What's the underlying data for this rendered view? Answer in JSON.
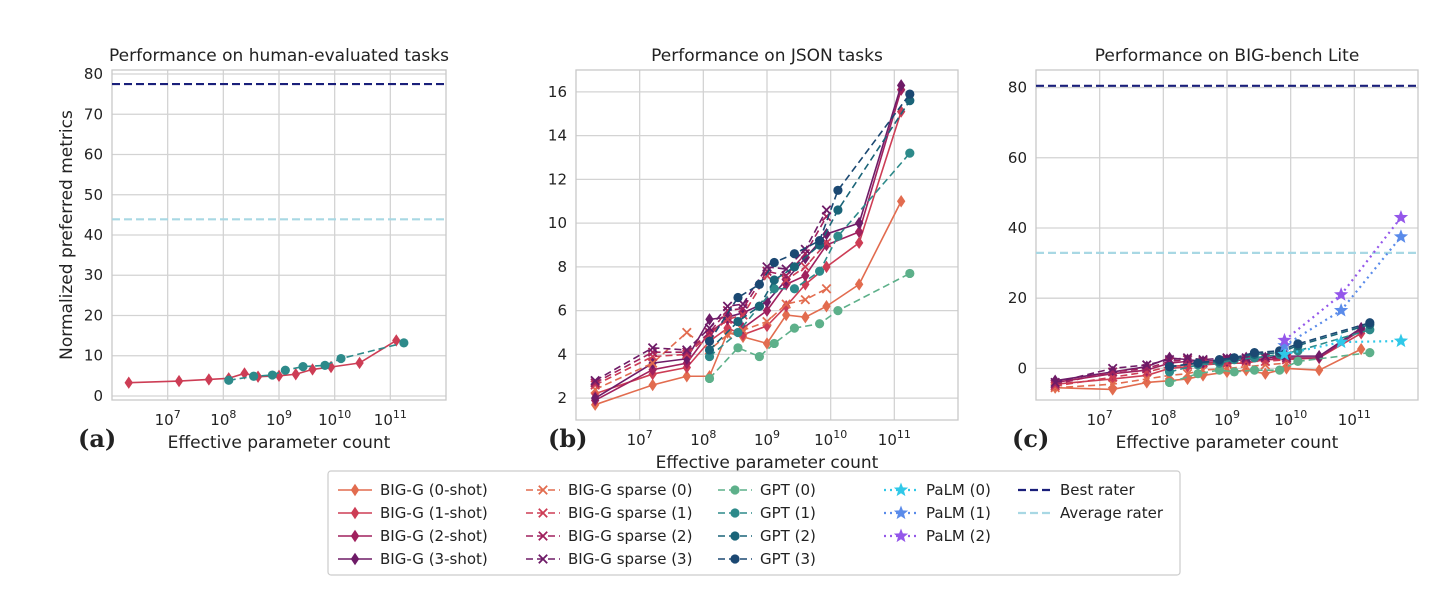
{
  "figure": {
    "panel_labels": [
      "(a)",
      "(b)",
      "(c)"
    ],
    "colors": {
      "BIG-G": [
        "#e26c4f",
        "#cd3d55",
        "#a0215e",
        "#6e1b67"
      ],
      "GPT": [
        "#5db08a",
        "#2d8a8a",
        "#1a6478",
        "#1b4872"
      ],
      "PaLM": [
        "#30c8e8",
        "#5a8bea",
        "#9457ea"
      ],
      "best_rater": "#1a1f7a",
      "average_rater": "#a8d8e4"
    }
  },
  "legend": {
    "columns": [
      [
        "BIG-G (0-shot)",
        "BIG-G (1-shot)",
        "BIG-G (2-shot)",
        "BIG-G (3-shot)"
      ],
      [
        "BIG-G sparse (0)",
        "BIG-G sparse (1)",
        "BIG-G sparse (2)",
        "BIG-G sparse (3)"
      ],
      [
        "GPT (0)",
        "GPT (1)",
        "GPT (2)",
        "GPT (3)"
      ],
      [
        "PaLM (0)",
        "PaLM (1)",
        "PaLM (2)"
      ],
      [
        "Best rater",
        "Average rater"
      ]
    ]
  },
  "chart_data": [
    {
      "type": "line",
      "title": "Performance on human-evaluated tasks",
      "xlabel": "Effective parameter count",
      "ylabel": "Normalized preferred metrics",
      "xscale": "log",
      "xlim": [
        1000000.0,
        1000000000000.0
      ],
      "ylim": [
        -1,
        81
      ],
      "xticks": [
        "10^7",
        "10^8",
        "10^9",
        "10^10",
        "10^11"
      ],
      "yticks": [
        0,
        10,
        20,
        30,
        40,
        50,
        60,
        70,
        80
      ],
      "grid": true,
      "hlines": [
        {
          "name": "Best rater",
          "y": 77.5
        },
        {
          "name": "Average rater",
          "y": 43.9
        }
      ],
      "series": [
        {
          "name": "BIG-G (1-shot)",
          "x": [
            2000000.0,
            16000000.0,
            55000000.0,
            125000000.0,
            240000000.0,
            420000000.0,
            1000000000.0,
            2000000000.0,
            4000000000.0,
            8600000000.0,
            28000000000.0,
            128000000000.0
          ],
          "y": [
            3.3,
            3.7,
            4.1,
            4.4,
            5.6,
            4.8,
            5.0,
            5.4,
            6.6,
            7.2,
            8.2,
            13.8
          ]
        },
        {
          "name": "GPT (1)",
          "x": [
            125000000.0,
            350000000.0,
            760000000.0,
            1300000000.0,
            2700000000.0,
            6700000000.0,
            13000000000.0,
            175000000000.0
          ],
          "y": [
            3.9,
            4.9,
            5.2,
            6.4,
            7.3,
            7.6,
            9.3,
            13.2
          ]
        }
      ]
    },
    {
      "type": "line",
      "title": "Performance on JSON tasks",
      "xlabel": "Effective parameter count",
      "ylabel": "",
      "xscale": "log",
      "xlim": [
        1000000.0,
        1000000000000.0
      ],
      "ylim": [
        1.0,
        17.0
      ],
      "xticks": [
        "10^7",
        "10^8",
        "10^9",
        "10^10",
        "10^11"
      ],
      "yticks": [
        2,
        4,
        6,
        8,
        10,
        12,
        14,
        16
      ],
      "grid": true,
      "series": [
        {
          "name": "BIG-G (0-shot)",
          "x": [
            2000000.0,
            16000000.0,
            55000000.0,
            125000000.0,
            240000000.0,
            420000000.0,
            1000000000.0,
            2000000000.0,
            4000000000.0,
            8600000000.0,
            28000000000.0,
            128000000000.0
          ],
          "y": [
            1.7,
            2.6,
            3.0,
            3.0,
            5.0,
            4.8,
            4.5,
            5.8,
            5.7,
            6.2,
            7.2,
            11.0
          ]
        },
        {
          "name": "BIG-G (1-shot)",
          "x": [
            2000000.0,
            16000000.0,
            55000000.0,
            125000000.0,
            240000000.0,
            420000000.0,
            1000000000.0,
            2000000000.0,
            4000000000.0,
            8600000000.0,
            28000000000.0,
            128000000000.0
          ],
          "y": [
            2.2,
            3.1,
            3.4,
            4.6,
            5.2,
            4.9,
            5.3,
            6.2,
            7.2,
            8.0,
            9.1,
            15.1
          ]
        },
        {
          "name": "BIG-G (2-shot)",
          "x": [
            2000000.0,
            16000000.0,
            55000000.0,
            125000000.0,
            240000000.0,
            420000000.0,
            1000000000.0,
            2000000000.0,
            4000000000.0,
            8600000000.0,
            28000000000.0,
            128000000000.0
          ],
          "y": [
            1.9,
            3.3,
            3.6,
            5.0,
            5.6,
            5.2,
            6.0,
            7.2,
            7.6,
            9.0,
            9.6,
            16.1
          ]
        },
        {
          "name": "BIG-G (3-shot)",
          "x": [
            2000000.0,
            16000000.0,
            55000000.0,
            125000000.0,
            240000000.0,
            420000000.0,
            1000000000.0,
            2000000000.0,
            4000000000.0,
            8600000000.0,
            28000000000.0,
            128000000000.0
          ],
          "y": [
            2.0,
            3.6,
            3.8,
            5.6,
            5.7,
            5.9,
            6.4,
            7.4,
            8.4,
            9.5,
            10.0,
            16.3
          ]
        },
        {
          "name": "BIG-G sparse (0)",
          "x": [
            2000000.0,
            16000000.0,
            55000000.0,
            125000000.0,
            240000000.0,
            420000000.0,
            1000000000.0,
            2000000000.0,
            4000000000.0,
            8600000000.0
          ],
          "y": [
            2.4,
            3.6,
            5.0,
            4.2,
            4.9,
            5.1,
            5.5,
            6.3,
            6.5,
            7.0
          ]
        },
        {
          "name": "BIG-G sparse (1)",
          "x": [
            2000000.0,
            16000000.0,
            55000000.0,
            125000000.0,
            240000000.0,
            420000000.0,
            1000000000.0,
            2000000000.0,
            4000000000.0,
            8600000000.0
          ],
          "y": [
            2.6,
            3.9,
            4.0,
            4.9,
            5.6,
            5.8,
            7.6,
            7.4,
            8.0,
            9.1
          ]
        },
        {
          "name": "BIG-G sparse (2)",
          "x": [
            2000000.0,
            16000000.0,
            55000000.0,
            125000000.0,
            240000000.0,
            420000000.0,
            1000000000.0,
            2000000000.0,
            4000000000.0,
            8600000000.0
          ],
          "y": [
            2.7,
            4.1,
            4.1,
            5.0,
            6.0,
            6.1,
            7.8,
            7.6,
            8.6,
            10.3
          ]
        },
        {
          "name": "BIG-G sparse (3)",
          "x": [
            2000000.0,
            16000000.0,
            55000000.0,
            125000000.0,
            240000000.0,
            420000000.0,
            1000000000.0,
            2000000000.0,
            4000000000.0,
            8600000000.0
          ],
          "y": [
            2.8,
            4.3,
            4.2,
            5.2,
            6.2,
            6.3,
            8.0,
            7.9,
            8.8,
            10.6
          ]
        },
        {
          "name": "GPT (0)",
          "x": [
            125000000.0,
            350000000.0,
            760000000.0,
            1300000000.0,
            2700000000.0,
            6700000000.0,
            13000000000.0,
            175000000000.0
          ],
          "y": [
            2.9,
            4.3,
            3.9,
            4.5,
            5.2,
            5.4,
            6.0,
            7.7
          ]
        },
        {
          "name": "GPT (1)",
          "x": [
            125000000.0,
            350000000.0,
            760000000.0,
            1300000000.0,
            2700000000.0,
            6700000000.0,
            13000000000.0,
            175000000000.0
          ],
          "y": [
            3.9,
            5.0,
            6.2,
            7.0,
            7.0,
            7.8,
            9.4,
            13.2
          ]
        },
        {
          "name": "GPT (2)",
          "x": [
            125000000.0,
            350000000.0,
            760000000.0,
            1300000000.0,
            2700000000.0,
            6700000000.0,
            13000000000.0,
            175000000000.0
          ],
          "y": [
            4.2,
            5.5,
            6.2,
            7.4,
            8.0,
            9.0,
            10.6,
            15.6
          ]
        },
        {
          "name": "GPT (3)",
          "x": [
            125000000.0,
            350000000.0,
            760000000.0,
            1300000000.0,
            2700000000.0,
            6700000000.0,
            13000000000.0,
            175000000000.0
          ],
          "y": [
            4.6,
            6.6,
            7.2,
            8.2,
            8.6,
            9.2,
            11.5,
            15.9
          ]
        }
      ]
    },
    {
      "type": "line",
      "title": "Performance on BIG-bench Lite",
      "xlabel": "Effective parameter count",
      "ylabel": "",
      "xscale": "log",
      "xlim": [
        1000000.0,
        1000000000000.0
      ],
      "ylim": [
        -9,
        85
      ],
      "xticks": [
        "10^7",
        "10^8",
        "10^9",
        "10^10",
        "10^11"
      ],
      "yticks": [
        0,
        20,
        40,
        60,
        80
      ],
      "grid": true,
      "hlines": [
        {
          "name": "Best rater",
          "y": 80.5
        },
        {
          "name": "Average rater",
          "y": 32.9
        }
      ],
      "series": [
        {
          "name": "BIG-G (0-shot)",
          "x": [
            2000000.0,
            16000000.0,
            55000000.0,
            125000000.0,
            240000000.0,
            420000000.0,
            1000000000.0,
            2000000000.0,
            4000000000.0,
            8600000000.0,
            28000000000.0,
            128000000000.0
          ],
          "y": [
            -5.5,
            -6.0,
            -4.0,
            -3.5,
            -3.0,
            -2.0,
            -1.0,
            -0.5,
            -1.5,
            0.0,
            -0.5,
            5.5
          ]
        },
        {
          "name": "BIG-G (1-shot)",
          "x": [
            2000000.0,
            16000000.0,
            55000000.0,
            125000000.0,
            240000000.0,
            420000000.0,
            1000000000.0,
            2000000000.0,
            4000000000.0,
            8600000000.0,
            28000000000.0,
            128000000000.0
          ],
          "y": [
            -4.5,
            -3.0,
            -2.0,
            0.0,
            0.5,
            1.0,
            1.5,
            1.5,
            2.5,
            2.5,
            3.0,
            10.0
          ]
        },
        {
          "name": "BIG-G (2-shot)",
          "x": [
            2000000.0,
            16000000.0,
            55000000.0,
            125000000.0,
            240000000.0,
            420000000.0,
            1000000000.0,
            2000000000.0,
            4000000000.0,
            8600000000.0,
            28000000000.0,
            128000000000.0
          ],
          "y": [
            -4.0,
            -1.5,
            -0.5,
            1.5,
            2.0,
            1.5,
            2.0,
            2.5,
            2.5,
            3.0,
            3.0,
            11.0
          ]
        },
        {
          "name": "BIG-G (3-shot)",
          "x": [
            2000000.0,
            16000000.0,
            55000000.0,
            125000000.0,
            240000000.0,
            420000000.0,
            1000000000.0,
            2000000000.0,
            4000000000.0,
            8600000000.0,
            28000000000.0,
            128000000000.0
          ],
          "y": [
            -3.5,
            -1.0,
            0.5,
            3.0,
            2.5,
            2.0,
            2.5,
            3.0,
            3.0,
            3.5,
            3.5,
            11.5
          ]
        },
        {
          "name": "BIG-G sparse (0)",
          "x": [
            2000000.0,
            16000000.0,
            55000000.0,
            125000000.0,
            240000000.0,
            420000000.0,
            1000000000.0,
            2000000000.0,
            4000000000.0,
            8600000000.0
          ],
          "y": [
            -5.5,
            -4.5,
            -3.0,
            -2.0,
            -1.5,
            -0.5,
            0.0,
            0.5,
            1.0,
            1.5
          ]
        },
        {
          "name": "BIG-G sparse (1)",
          "x": [
            2000000.0,
            16000000.0,
            55000000.0,
            125000000.0,
            240000000.0,
            420000000.0,
            1000000000.0,
            2000000000.0,
            4000000000.0,
            8600000000.0
          ],
          "y": [
            -5.0,
            -2.5,
            -1.0,
            0.5,
            1.0,
            1.5,
            1.5,
            2.0,
            2.0,
            2.5
          ]
        },
        {
          "name": "BIG-G sparse (2)",
          "x": [
            2000000.0,
            16000000.0,
            55000000.0,
            125000000.0,
            240000000.0,
            420000000.0,
            1000000000.0,
            2000000000.0,
            4000000000.0,
            8600000000.0
          ],
          "y": [
            -4.5,
            -1.0,
            0.0,
            2.0,
            2.5,
            2.0,
            2.5,
            2.5,
            3.0,
            3.0
          ]
        },
        {
          "name": "BIG-G sparse (3)",
          "x": [
            2000000.0,
            16000000.0,
            55000000.0,
            125000000.0,
            240000000.0,
            420000000.0,
            1000000000.0,
            2000000000.0,
            4000000000.0,
            8600000000.0
          ],
          "y": [
            -4.0,
            0.0,
            1.0,
            2.5,
            3.0,
            2.5,
            3.0,
            3.0,
            3.5,
            3.5
          ]
        },
        {
          "name": "GPT (0)",
          "x": [
            125000000.0,
            350000000.0,
            760000000.0,
            1300000000.0,
            2700000000.0,
            6700000000.0,
            13000000000.0,
            175000000000.0
          ],
          "y": [
            -4.0,
            -1.5,
            -0.5,
            -1.0,
            -0.5,
            -0.5,
            2.0,
            4.5
          ]
        },
        {
          "name": "GPT (1)",
          "x": [
            125000000.0,
            350000000.0,
            760000000.0,
            1300000000.0,
            2700000000.0,
            6700000000.0,
            13000000000.0,
            175000000000.0
          ],
          "y": [
            -1.0,
            1.0,
            1.5,
            2.5,
            3.0,
            4.0,
            5.0,
            11.0
          ]
        },
        {
          "name": "GPT (2)",
          "x": [
            125000000.0,
            350000000.0,
            760000000.0,
            1300000000.0,
            2700000000.0,
            6700000000.0,
            13000000000.0,
            175000000000.0
          ],
          "y": [
            0.5,
            1.5,
            2.0,
            3.0,
            4.0,
            4.5,
            6.5,
            12.5
          ]
        },
        {
          "name": "GPT (3)",
          "x": [
            125000000.0,
            350000000.0,
            760000000.0,
            1300000000.0,
            2700000000.0,
            6700000000.0,
            13000000000.0,
            175000000000.0
          ],
          "y": [
            0.5,
            1.5,
            2.5,
            3.0,
            4.5,
            5.0,
            7.0,
            13.0
          ]
        },
        {
          "name": "PaLM (0)",
          "x": [
            8000000000.0,
            62000000000.0,
            540000000000.0
          ],
          "y": [
            4.0,
            7.5,
            7.8
          ]
        },
        {
          "name": "PaLM (1)",
          "x": [
            8000000000.0,
            62000000000.0,
            540000000000.0
          ],
          "y": [
            6.5,
            16.5,
            37.5
          ]
        },
        {
          "name": "PaLM (2)",
          "x": [
            8000000000.0,
            62000000000.0,
            540000000000.0
          ],
          "y": [
            8.0,
            21.0,
            43.0
          ]
        }
      ]
    }
  ]
}
